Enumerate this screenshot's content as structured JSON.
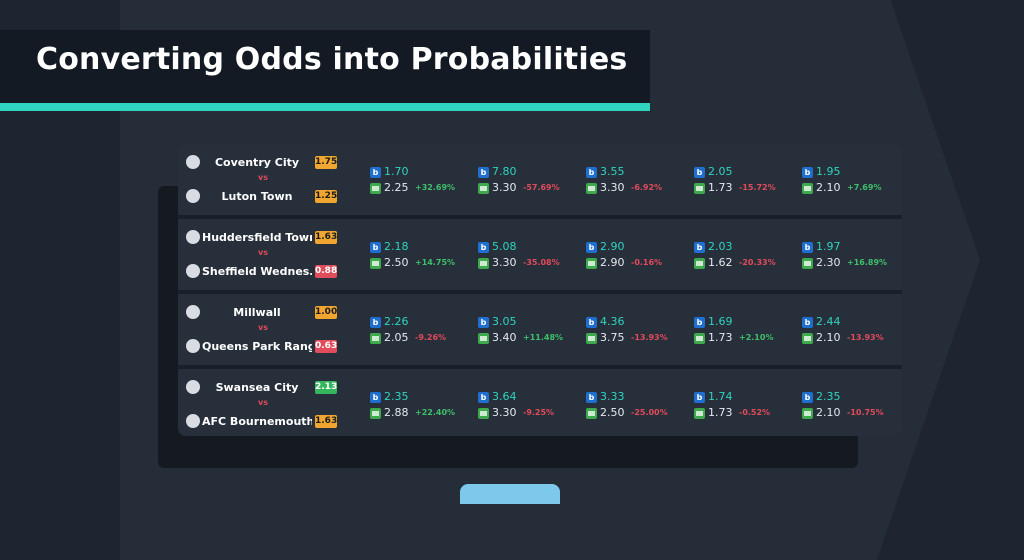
{
  "title": "Converting Odds into Probabilities",
  "colors": {
    "accent": "#2fd3c0",
    "positive": "#3fbf6a",
    "negative": "#e24a5a",
    "badge_orange": "#f0a630",
    "badge_red": "#e04c5c",
    "badge_green": "#35b65e"
  },
  "matches": [
    {
      "home": "Coventry City",
      "home_icon": "coventry-crest-icon",
      "home_odd": "1.75",
      "home_badge": "orange",
      "vs": "vs",
      "away": "Luton Town",
      "away_icon": "luton-crest-icon",
      "away_odd": "1.25",
      "away_badge": "orange",
      "markets": [
        {
          "bk": "1.70",
          "ex": "2.25",
          "pct": "+32.69%",
          "dir": "pos"
        },
        {
          "bk": "7.80",
          "ex": "3.30",
          "pct": "-57.69%",
          "dir": "neg"
        },
        {
          "bk": "3.55",
          "ex": "3.30",
          "pct": "-6.92%",
          "dir": "neg"
        },
        {
          "bk": "2.05",
          "ex": "1.73",
          "pct": "-15.72%",
          "dir": "neg"
        },
        {
          "bk": "1.95",
          "ex": "2.10",
          "pct": "+7.69%",
          "dir": "pos"
        }
      ]
    },
    {
      "home": "Huddersfield Town",
      "home_icon": "huddersfield-crest-icon",
      "home_odd": "1.63",
      "home_badge": "orange",
      "vs": "vs",
      "away": "Sheffield Wednes…",
      "away_icon": "sheffield-crest-icon",
      "away_odd": "0.88",
      "away_badge": "red",
      "markets": [
        {
          "bk": "2.18",
          "ex": "2.50",
          "pct": "+14.75%",
          "dir": "pos"
        },
        {
          "bk": "5.08",
          "ex": "3.30",
          "pct": "-35.08%",
          "dir": "neg"
        },
        {
          "bk": "2.90",
          "ex": "2.90",
          "pct": "-0.16%",
          "dir": "neg"
        },
        {
          "bk": "2.03",
          "ex": "1.62",
          "pct": "-20.33%",
          "dir": "neg"
        },
        {
          "bk": "1.97",
          "ex": "2.30",
          "pct": "+16.89%",
          "dir": "pos"
        }
      ]
    },
    {
      "home": "Millwall",
      "home_icon": "millwall-crest-icon",
      "home_odd": "1.00",
      "home_badge": "orange",
      "vs": "vs",
      "away": "Queens Park Rang…",
      "away_icon": "qpr-crest-icon",
      "away_odd": "0.63",
      "away_badge": "red",
      "markets": [
        {
          "bk": "2.26",
          "ex": "2.05",
          "pct": "-9.26%",
          "dir": "neg"
        },
        {
          "bk": "3.05",
          "ex": "3.40",
          "pct": "+11.48%",
          "dir": "pos"
        },
        {
          "bk": "4.36",
          "ex": "3.75",
          "pct": "-13.93%",
          "dir": "neg"
        },
        {
          "bk": "1.69",
          "ex": "1.73",
          "pct": "+2.10%",
          "dir": "pos"
        },
        {
          "bk": "2.44",
          "ex": "2.10",
          "pct": "-13.93%",
          "dir": "neg"
        }
      ]
    },
    {
      "home": "Swansea City",
      "home_icon": "swansea-crest-icon",
      "home_odd": "2.13",
      "home_badge": "green",
      "vs": "vs",
      "away": "AFC Bournemouth",
      "away_icon": "bournemouth-crest-icon",
      "away_odd": "1.63",
      "away_badge": "orange",
      "markets": [
        {
          "bk": "2.35",
          "ex": "2.88",
          "pct": "+22.40%",
          "dir": "pos"
        },
        {
          "bk": "3.64",
          "ex": "3.30",
          "pct": "-9.25%",
          "dir": "neg"
        },
        {
          "bk": "3.33",
          "ex": "2.50",
          "pct": "-25.00%",
          "dir": "neg"
        },
        {
          "bk": "1.74",
          "ex": "1.73",
          "pct": "-0.52%",
          "dir": "neg"
        },
        {
          "bk": "2.35",
          "ex": "2.10",
          "pct": "-10.75%",
          "dir": "neg"
        }
      ]
    }
  ]
}
